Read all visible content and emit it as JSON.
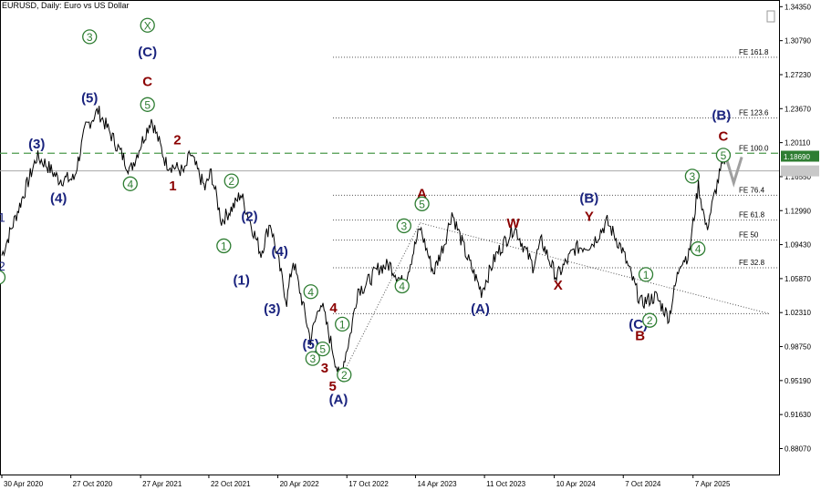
{
  "header": {
    "symbol": "EURUSD, Daily:",
    "description": "Euro vs US Dollar"
  },
  "chart_data": {
    "type": "line",
    "instrument": "EURUSD",
    "timeframe": "Daily",
    "ylim": [
      0.8535,
      1.3505
    ],
    "y_ticks": [
      "1.34350",
      "1.30790",
      "1.27230",
      "1.23670",
      "1.20110",
      "1.16550",
      "1.12990",
      "1.09430",
      "1.05870",
      "1.02310",
      "0.98750",
      "0.95190",
      "0.91630",
      "0.88070"
    ],
    "x_ticks": [
      "30 Apr 2020",
      "27 Oct 2020",
      "27 Apr 2021",
      "22 Oct 2021",
      "20 Apr 2022",
      "17 Oct 2022",
      "14 Apr 2023",
      "11 Oct 2023",
      "10 Apr 2024",
      "7 Oct 2024",
      "7 Apr 2025"
    ],
    "current_price": {
      "label": "1.18690",
      "value": 1.1869
    },
    "reference_price": {
      "value": 1.1715
    },
    "series": [
      {
        "x": [
          "2020-04-30",
          "2020-06-10",
          "2020-07-30",
          "2020-08-20",
          "2020-09-25",
          "2020-11-04",
          "2020-12-05",
          "2021-01-06",
          "2021-03-31",
          "2021-05-25",
          "2021-07-02",
          "2021-08-20",
          "2021-09-03",
          "2021-10-12",
          "2021-10-28",
          "2021-11-24",
          "2021-12-30",
          "2022-01-13",
          "2022-03-07",
          "2022-03-31",
          "2022-05-13",
          "2022-05-30",
          "2022-07-14",
          "2022-08-10",
          "2022-09-28",
          "2022-10-26",
          "2022-11-15",
          "2022-11-30",
          "2023-01-09",
          "2023-02-06",
          "2023-03-15",
          "2023-04-26",
          "2023-05-31",
          "2023-06-30",
          "2023-07-18",
          "2023-08-25",
          "2023-10-03",
          "2023-11-10",
          "2023-12-28",
          "2024-02-14",
          "2024-03-08",
          "2024-04-16",
          "2024-06-03",
          "2024-07-17",
          "2024-08-26",
          "2024-10-03",
          "2024-11-22",
          "2024-12-31",
          "2025-02-03",
          "2025-03-05",
          "2025-03-27",
          "2025-04-21",
          "2025-05-12",
          "2025-06-12",
          "2025-07-01"
        ],
        "y": [
          1.083,
          1.129,
          1.186,
          1.18,
          1.163,
          1.163,
          1.217,
          1.2345,
          1.172,
          1.226,
          1.18,
          1.17,
          1.19,
          1.153,
          1.17,
          1.119,
          1.137,
          1.148,
          1.085,
          1.118,
          1.035,
          1.078,
          0.995,
          1.036,
          0.954,
          1.0,
          1.048,
          1.05,
          1.07,
          1.073,
          1.052,
          1.112,
          1.065,
          1.098,
          1.128,
          1.083,
          1.045,
          1.083,
          1.113,
          1.072,
          1.098,
          1.06,
          1.09,
          1.095,
          1.118,
          1.09,
          1.033,
          1.04,
          1.018,
          1.077,
          1.083,
          1.157,
          1.11,
          1.163,
          1.187
        ]
      }
    ],
    "fib_levels": [
      {
        "label": "FE 161.8",
        "value": 1.2905
      },
      {
        "label": "FE 123.6",
        "value": 1.227
      },
      {
        "label": "FE 100.0",
        "value": 1.19
      },
      {
        "label": "FE 76.4",
        "value": 1.146
      },
      {
        "label": "FE 61.8",
        "value": 1.12
      },
      {
        "label": "FE 50",
        "value": 1.099
      },
      {
        "label": "FE 32.8",
        "value": 1.07
      }
    ],
    "wave_labels": [
      {
        "text": "(3)",
        "date": "2020-07-30",
        "price": 1.2,
        "color": "#1a237e"
      },
      {
        "text": "(4)",
        "date": "2020-09-25",
        "price": 1.143,
        "color": "#1a237e"
      },
      {
        "text": "3",
        "date": "2020-12-15",
        "price": 1.312,
        "color": "#2e7d32",
        "circled": true
      },
      {
        "text": "(5)",
        "date": "2020-12-15",
        "price": 1.248,
        "color": "#1a237e"
      },
      {
        "text": "4",
        "date": "2021-03-31",
        "price": 1.158,
        "color": "#2e7d32",
        "circled": true
      },
      {
        "text": "X",
        "date": "2021-05-15",
        "price": 1.324,
        "color": "#2e7d32",
        "circled": true
      },
      {
        "text": "(C)",
        "date": "2021-05-15",
        "price": 1.296,
        "color": "#1a237e"
      },
      {
        "text": "C",
        "date": "2021-05-15",
        "price": 1.265,
        "color": "#8b0000"
      },
      {
        "text": "5",
        "date": "2021-05-15",
        "price": 1.241,
        "color": "#2e7d32",
        "circled": true
      },
      {
        "text": "1",
        "date": "2021-07-20",
        "price": 1.156,
        "color": "#8b0000"
      },
      {
        "text": "2",
        "date": "2021-08-01",
        "price": 1.204,
        "color": "#8b0000"
      },
      {
        "text": "2",
        "date": "2021-12-20",
        "price": 1.161,
        "color": "#2e7d32",
        "circled": true
      },
      {
        "text": "1",
        "date": "2021-11-30",
        "price": 1.093,
        "color": "#2e7d32",
        "circled": true
      },
      {
        "text": "(2)",
        "date": "2022-02-05",
        "price": 1.124,
        "color": "#1a237e"
      },
      {
        "text": "(1)",
        "date": "2022-01-15",
        "price": 1.057,
        "color": "#1a237e"
      },
      {
        "text": "(4)",
        "date": "2022-04-25",
        "price": 1.087,
        "color": "#1a237e"
      },
      {
        "text": "(3)",
        "date": "2022-04-05",
        "price": 1.027,
        "color": "#1a237e"
      },
      {
        "text": "4",
        "date": "2022-07-15",
        "price": 1.045,
        "color": "#2e7d32",
        "circled": true
      },
      {
        "text": "4",
        "date": "2022-09-12",
        "price": 1.028,
        "color": "#8b0000"
      },
      {
        "text": "1",
        "date": "2022-10-05",
        "price": 1.011,
        "color": "#2e7d32",
        "circled": true
      },
      {
        "text": "(5)",
        "date": "2022-07-15",
        "price": 0.99,
        "color": "#1a237e"
      },
      {
        "text": "5",
        "date": "2022-08-15",
        "price": 0.985,
        "color": "#2e7d32",
        "circled": true
      },
      {
        "text": "3",
        "date": "2022-07-20",
        "price": 0.975,
        "color": "#2e7d32",
        "circled": true
      },
      {
        "text": "3",
        "date": "2022-08-20",
        "price": 0.965,
        "color": "#8b0000"
      },
      {
        "text": "5",
        "date": "2022-09-10",
        "price": 0.946,
        "color": "#8b0000"
      },
      {
        "text": "2",
        "date": "2022-10-10",
        "price": 0.958,
        "color": "#2e7d32",
        "circled": true
      },
      {
        "text": "(A)",
        "date": "2022-09-25",
        "price": 0.932,
        "color": "#1a237e"
      },
      {
        "text": "3",
        "date": "2023-03-15",
        "price": 1.114,
        "color": "#2e7d32",
        "circled": true
      },
      {
        "text": "A",
        "date": "2023-05-01",
        "price": 1.148,
        "color": "#8b0000"
      },
      {
        "text": "5",
        "date": "2023-05-01",
        "price": 1.137,
        "color": "#2e7d32",
        "circled": true
      },
      {
        "text": "4",
        "date": "2023-03-10",
        "price": 1.051,
        "color": "#2e7d32",
        "circled": true
      },
      {
        "text": "W",
        "date": "2023-12-25",
        "price": 1.117,
        "color": "#8b0000"
      },
      {
        "text": "(A)",
        "date": "2023-09-30",
        "price": 1.027,
        "color": "#1a237e"
      },
      {
        "text": "X",
        "date": "2024-04-20",
        "price": 1.052,
        "color": "#8b0000"
      },
      {
        "text": "(B)",
        "date": "2024-07-10",
        "price": 1.143,
        "color": "#1a237e"
      },
      {
        "text": "Y",
        "date": "2024-07-10",
        "price": 1.124,
        "color": "#8b0000"
      },
      {
        "text": "1",
        "date": "2024-12-05",
        "price": 1.063,
        "color": "#2e7d32",
        "circled": true
      },
      {
        "text": "(C)",
        "date": "2024-11-15",
        "price": 1.011,
        "color": "#1a237e"
      },
      {
        "text": "2",
        "date": "2024-12-15",
        "price": 1.015,
        "color": "#2e7d32",
        "circled": true
      },
      {
        "text": "B",
        "date": "2024-11-20",
        "price": 0.999,
        "color": "#8b0000"
      },
      {
        "text": "3",
        "date": "2025-04-05",
        "price": 1.166,
        "color": "#2e7d32",
        "circled": true
      },
      {
        "text": "4",
        "date": "2025-04-20",
        "price": 1.09,
        "color": "#2e7d32",
        "circled": true
      },
      {
        "text": "(B)",
        "date": "2025-06-20",
        "price": 1.23,
        "color": "#1a237e"
      },
      {
        "text": "C",
        "date": "2025-06-25",
        "price": 1.208,
        "color": "#8b0000"
      },
      {
        "text": "5",
        "date": "2025-06-25",
        "price": 1.188,
        "color": "#2e7d32",
        "circled": true
      }
    ],
    "left_edge_labels": [
      {
        "text": "1",
        "price": 1.123,
        "color": "#1a237e"
      },
      {
        "text": "2",
        "price": 1.072,
        "color": "#1a237e"
      },
      {
        "text": "1",
        "price": 1.06,
        "color": "#2e7d32",
        "circled": true
      }
    ]
  }
}
